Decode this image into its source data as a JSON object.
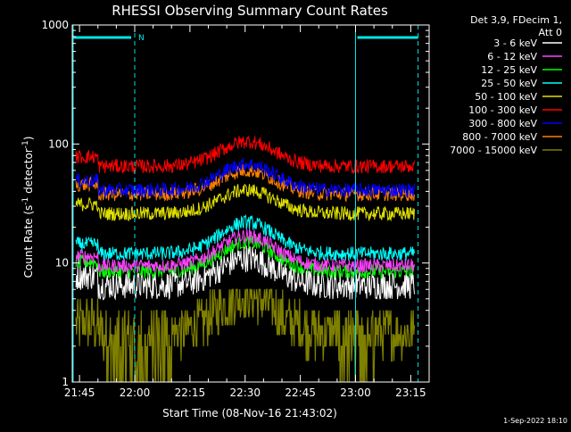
{
  "chart_data": {
    "type": "line",
    "title": "RHESSI Observing Summary Count Rates",
    "xlabel": "Start Time (08-Nov-16 21:43:02)",
    "ylabel_main": "Count Rate (s",
    "ylabel_sup1": "-1",
    "ylabel_mid": " detector",
    "ylabel_sup2": "-1",
    "ylabel_end": ")",
    "y_scale": "log",
    "ylim": [
      1,
      1000
    ],
    "y_ticks": [
      {
        "value": 1,
        "label": "1"
      },
      {
        "value": 10,
        "label": "10"
      },
      {
        "value": 100,
        "label": "100"
      },
      {
        "value": 1000,
        "label": "1000"
      }
    ],
    "xlim": [
      "21:43:02",
      "23:20:00"
    ],
    "x_ticks": [
      "21:45",
      "22:00",
      "22:15",
      "22:30",
      "22:45",
      "23:00",
      "23:15"
    ],
    "x_tick_minutes": [
      1305,
      1320,
      1335,
      1350,
      1365,
      1380,
      1395
    ],
    "x_range_minutes": [
      1303.03,
      1400.0
    ],
    "grid": false,
    "legend_placement": "top-right outside plot",
    "legend_header": [
      "Det 3,9, FDecim 1,",
      "Att 0"
    ],
    "series": [
      {
        "name": "3 - 6 keV",
        "color": "#ffffff",
        "baseline": 6.5,
        "peak": 11
      },
      {
        "name": "6 - 12 keV",
        "color": "#ff40ff",
        "baseline": 9.5,
        "peak": 17
      },
      {
        "name": "12 - 25 keV",
        "color": "#00ff00",
        "baseline": 8.5,
        "peak": 15
      },
      {
        "name": "25 - 50 keV",
        "color": "#00ffff",
        "baseline": 12,
        "peak": 22
      },
      {
        "name": "50 - 100 keV",
        "color": "#e0e000",
        "baseline": 26,
        "peak": 41
      },
      {
        "name": "100 - 300 keV",
        "color": "#ff0000",
        "baseline": 65,
        "peak": 105
      },
      {
        "name": "300 - 800 keV",
        "color": "#0000ff",
        "baseline": 41,
        "peak": 68
      },
      {
        "name": "800 - 7000 keV",
        "color": "#ff8000",
        "baseline": 38,
        "peak": 60
      },
      {
        "name": "7000 - 15000 keV",
        "color": "#808000",
        "baseline": 2.6,
        "peak": 5.5
      }
    ],
    "night_markers": [
      {
        "start": "21:43",
        "end": "22:00"
      },
      {
        "start": "23:00",
        "end": "23:17"
      }
    ],
    "flag_label": "N",
    "footer_date": "1-Sep-2022 18:10",
    "colors": {
      "background": "#000000",
      "axes": "#ffffff",
      "markers": "#00e5e5"
    }
  }
}
